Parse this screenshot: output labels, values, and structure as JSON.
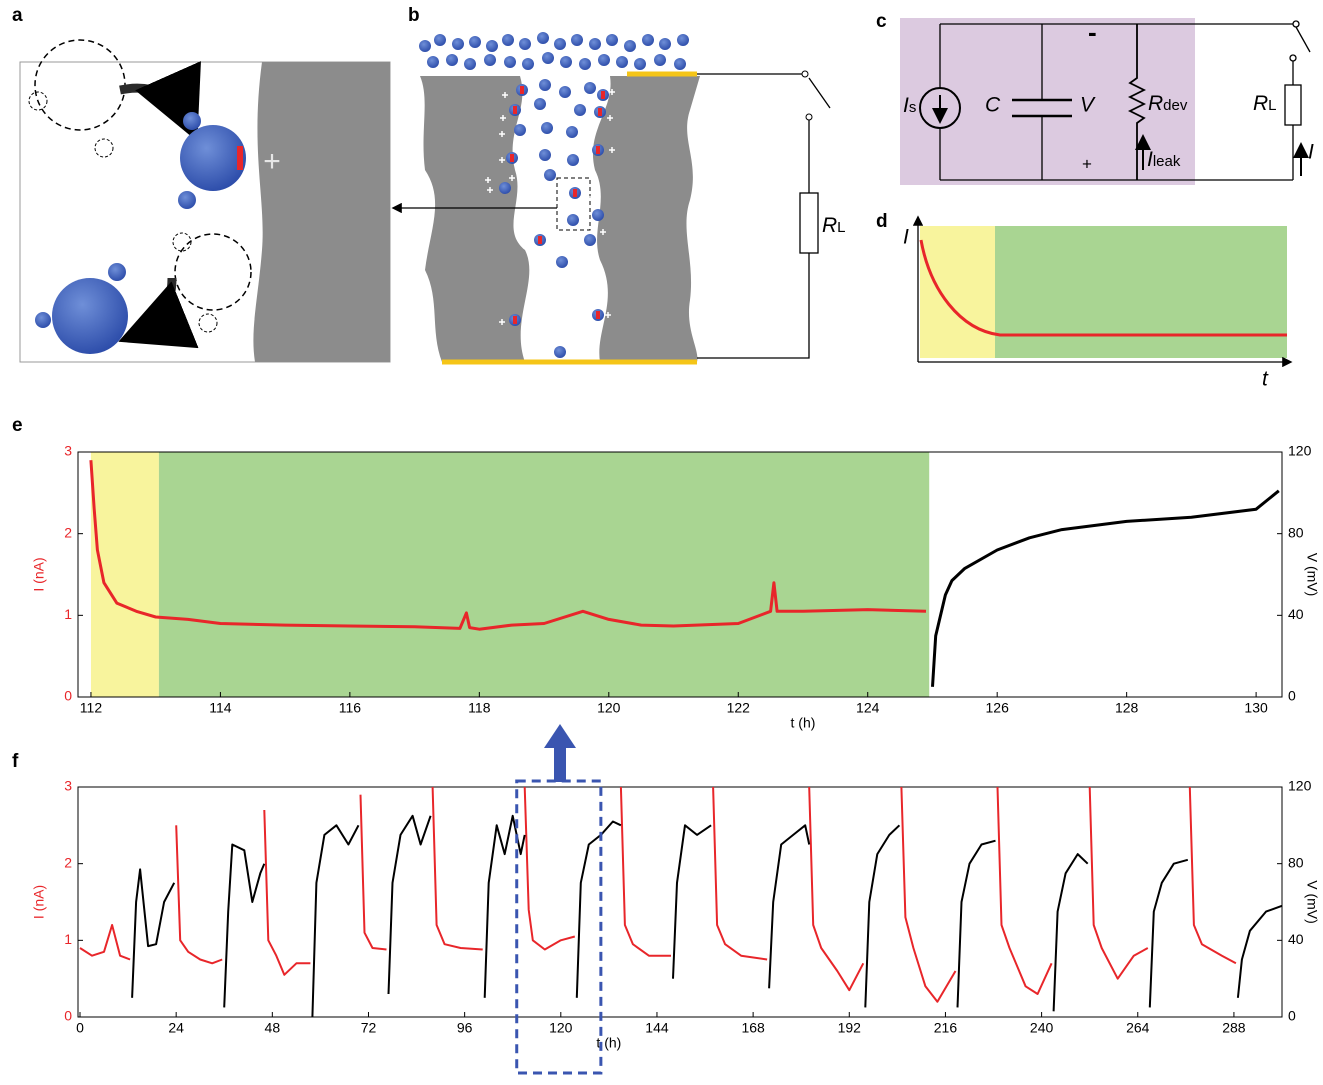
{
  "panel_labels": [
    "a",
    "b",
    "c",
    "d",
    "e",
    "f"
  ],
  "panel_a": {
    "surface_charge": "+"
  },
  "panel_b": {
    "load": {
      "symbol": "R",
      "sub": "L"
    }
  },
  "panel_c": {
    "source": {
      "symbol": "I",
      "sub": "s"
    },
    "capacitor": "C",
    "voltage": "V",
    "device": {
      "symbol": "R",
      "sub": "dev"
    },
    "leak": {
      "symbol": "I",
      "sub": "leak"
    },
    "load": {
      "symbol": "R",
      "sub": "L"
    },
    "current": "I",
    "minus": "-",
    "plus": "+"
  },
  "panel_d": {
    "ylabel": "I",
    "xlabel": "t"
  },
  "chart_data": [
    {
      "type": "line",
      "xlabel": "t (h)",
      "ylabel": "I (nA)",
      "y2label": "V (mV)",
      "y_axis_color": "#e8262a",
      "xlim": [
        111.8,
        130.4
      ],
      "xticks": [
        112,
        114,
        116,
        118,
        120,
        122,
        124,
        126,
        128,
        130
      ],
      "ylim": [
        0,
        3
      ],
      "yticks": [
        0,
        1,
        2,
        3
      ],
      "y2lim": [
        0,
        120
      ],
      "y2ticks": [
        0,
        40,
        80,
        120
      ],
      "regions": [
        {
          "x0": 112,
          "x1": 113.05,
          "color": "#f8f49d"
        },
        {
          "x0": 113.05,
          "x1": 124.95,
          "color": "#a9d592"
        }
      ],
      "series": [
        {
          "color": "#e8262a",
          "axis": "y",
          "x": [
            112,
            112.05,
            112.1,
            112.2,
            112.4,
            112.7,
            113,
            113.5,
            114,
            115,
            116,
            117,
            117.7,
            117.8,
            117.85,
            118,
            118.5,
            119,
            119.6,
            120,
            120.5,
            121,
            122,
            122.5,
            122.55,
            122.6,
            123,
            124,
            124.9
          ],
          "values": [
            2.9,
            2.3,
            1.8,
            1.4,
            1.15,
            1.05,
            0.98,
            0.95,
            0.9,
            0.88,
            0.87,
            0.86,
            0.84,
            1.03,
            0.85,
            0.83,
            0.88,
            0.9,
            1.05,
            0.95,
            0.88,
            0.87,
            0.9,
            1.05,
            1.4,
            1.05,
            1.05,
            1.07,
            1.05
          ]
        },
        {
          "color": "#000000",
          "axis": "y2",
          "x": [
            125,
            125.05,
            125.2,
            125.3,
            125.5,
            126,
            126.5,
            127,
            128,
            129,
            130,
            130.35
          ],
          "values": [
            5,
            30,
            50,
            57,
            63,
            72,
            78,
            82,
            86,
            88,
            92,
            101
          ]
        }
      ]
    },
    {
      "type": "line",
      "xlabel": "t (h)",
      "ylabel": "I (nA)",
      "y2label": "V (mV)",
      "y_axis_color": "#e8262a",
      "xlim": [
        -0.5,
        300
      ],
      "xticks": [
        0,
        24,
        48,
        72,
        96,
        120,
        144,
        168,
        192,
        216,
        240,
        264,
        288
      ],
      "ylim": [
        0,
        3
      ],
      "yticks": [
        0,
        1,
        2,
        3
      ],
      "y2lim": [
        0,
        120
      ],
      "y2ticks": [
        0,
        40,
        80,
        120
      ],
      "highlight": {
        "x0": 109,
        "x1": 130
      },
      "series": [
        {
          "color": "#e8262a",
          "axis": "y",
          "x": [
            0,
            3,
            6,
            8,
            10,
            12.5,
            13,
            24,
            25,
            27,
            30,
            33,
            35.5,
            36,
            46,
            47,
            49,
            51,
            54,
            57.5,
            58,
            70,
            71,
            73,
            76.5,
            77,
            88,
            89,
            91,
            95,
            100.5,
            101,
            111,
            112,
            113,
            116,
            120,
            123.5,
            124,
            135,
            136,
            138,
            142,
            147.5,
            148,
            158,
            159,
            161,
            165,
            171.5,
            172,
            182,
            183,
            185,
            189,
            192,
            195.5,
            196,
            205,
            206,
            208,
            211,
            214,
            218.5,
            219,
            229,
            230,
            232,
            236,
            239,
            242.5,
            243,
            252,
            253,
            255,
            259,
            263,
            266.5,
            267,
            277,
            278,
            280,
            285,
            288.5
          ],
          "values": [
            0.9,
            0.8,
            0.85,
            1.2,
            0.8,
            0.75,
            null,
            2.5,
            1.0,
            0.85,
            0.75,
            0.7,
            0.75,
            null,
            2.7,
            1.0,
            0.8,
            0.55,
            0.7,
            0.7,
            null,
            2.9,
            1.1,
            0.9,
            0.88,
            null,
            3.0,
            1.2,
            0.95,
            0.9,
            0.88,
            null,
            3.0,
            1.4,
            1.0,
            0.88,
            1.0,
            1.05,
            null,
            3.0,
            1.2,
            0.95,
            0.8,
            0.8,
            null,
            3.0,
            1.2,
            0.95,
            0.8,
            0.75,
            null,
            3.0,
            1.2,
            0.9,
            0.6,
            0.35,
            0.7,
            null,
            3.0,
            1.3,
            0.9,
            0.4,
            0.2,
            0.6,
            null,
            3.0,
            1.2,
            0.9,
            0.4,
            0.3,
            0.7,
            null,
            3.0,
            1.2,
            0.9,
            0.5,
            0.8,
            0.9,
            null,
            3.0,
            1.2,
            0.95,
            0.8,
            0.7
          ]
        },
        {
          "color": "#000000",
          "axis": "y2",
          "x": [
            13,
            14,
            15,
            17,
            19,
            21,
            23.5,
            24,
            36,
            37,
            38,
            41,
            43,
            45,
            46,
            47,
            58,
            59,
            61,
            64,
            67,
            69.5,
            70,
            77,
            78,
            80,
            83,
            85,
            87.5,
            88,
            101,
            102,
            104,
            106,
            108,
            110,
            111,
            112,
            124,
            125,
            127,
            130,
            133,
            135,
            136,
            148,
            149,
            151,
            154,
            157.5,
            158,
            172,
            173,
            175,
            178,
            181,
            182,
            183,
            196,
            197,
            199,
            202,
            204.5,
            205,
            219,
            220,
            222,
            225,
            228.5,
            229,
            243,
            244,
            246,
            249,
            251.5,
            252,
            267,
            268,
            270,
            273,
            276.5,
            277,
            289,
            290,
            292,
            296,
            300
          ],
          "values": [
            10,
            60,
            77,
            37,
            38,
            60,
            70,
            null,
            5,
            55,
            90,
            87,
            60,
            75,
            80,
            null,
            0,
            70,
            95,
            100,
            90,
            100,
            null,
            12,
            70,
            95,
            105,
            90,
            105,
            null,
            10,
            70,
            100,
            85,
            105,
            85,
            95,
            null,
            10,
            70,
            90,
            95,
            102,
            100,
            null,
            20,
            70,
            100,
            95,
            100,
            null,
            15,
            60,
            90,
            95,
            100,
            90,
            null,
            5,
            60,
            85,
            95,
            100,
            null,
            5,
            60,
            80,
            90,
            92,
            null,
            3,
            55,
            75,
            85,
            80,
            null,
            5,
            55,
            70,
            80,
            82,
            null,
            10,
            30,
            45,
            55,
            58
          ]
        }
      ]
    }
  ]
}
